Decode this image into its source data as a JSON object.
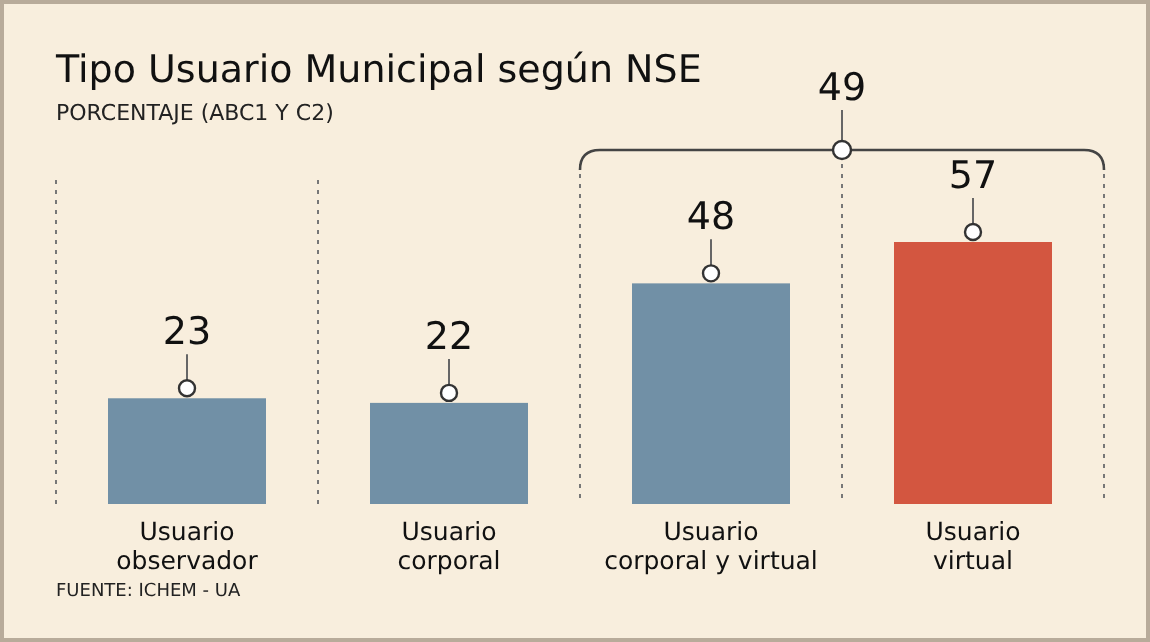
{
  "chart_data": {
    "type": "bar",
    "title": "Tipo Usuario Municipal según NSE",
    "subtitle": "PORCENTAJE (ABC1 Y C2)",
    "categories": [
      "Usuario observador",
      "Usuario corporal",
      "Usuario corporal y virtual",
      "Usuario virtual"
    ],
    "values": [
      23,
      22,
      48,
      57
    ],
    "colors": [
      "#7190a6",
      "#7190a6",
      "#7190a6",
      "#d35640"
    ],
    "data_labels": true,
    "annotations": [
      "49",
      "FUENTE: ICHEM - UA"
    ]
  }
}
